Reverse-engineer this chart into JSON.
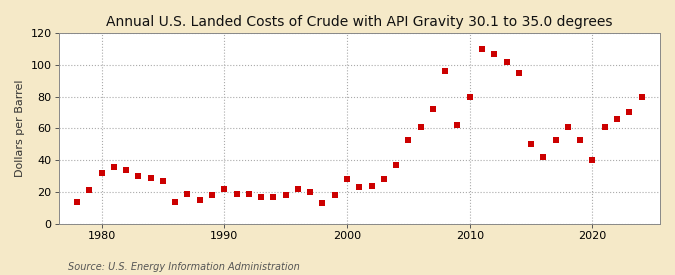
{
  "title": "Annual U.S. Landed Costs of Crude with API Gravity 30.1 to 35.0 degrees",
  "ylabel": "Dollars per Barrel",
  "source": "Source: U.S. Energy Information Administration",
  "outer_bg_color": "#F5E9C8",
  "plot_bg_color": "#FFFFFF",
  "marker_color": "#CC0000",
  "marker_size": 4,
  "xlim": [
    1976.5,
    2025.5
  ],
  "ylim": [
    0,
    120
  ],
  "yticks": [
    0,
    20,
    40,
    60,
    80,
    100,
    120
  ],
  "xticks": [
    1980,
    1990,
    2000,
    2010,
    2020
  ],
  "years": [
    1978,
    1979,
    1980,
    1981,
    1982,
    1983,
    1984,
    1985,
    1986,
    1987,
    1988,
    1989,
    1990,
    1991,
    1992,
    1993,
    1994,
    1995,
    1996,
    1997,
    1998,
    1999,
    2000,
    2001,
    2002,
    2003,
    2004,
    2005,
    2006,
    2007,
    2008,
    2009,
    2010,
    2011,
    2012,
    2013,
    2014,
    2015,
    2016,
    2017,
    2018,
    2019,
    2020,
    2021,
    2022,
    2023,
    2024
  ],
  "values": [
    14,
    21,
    32,
    36,
    34,
    30,
    29,
    27,
    14,
    19,
    15,
    18,
    22,
    19,
    19,
    17,
    17,
    18,
    22,
    20,
    13,
    18,
    28,
    23,
    24,
    28,
    37,
    53,
    61,
    72,
    96,
    62,
    80,
    110,
    107,
    102,
    95,
    50,
    42,
    53,
    61,
    53,
    40,
    61,
    66,
    70,
    80
  ],
  "grid_color": "#AAAAAA",
  "title_fontsize": 10,
  "label_fontsize": 8,
  "tick_fontsize": 8,
  "source_fontsize": 7
}
